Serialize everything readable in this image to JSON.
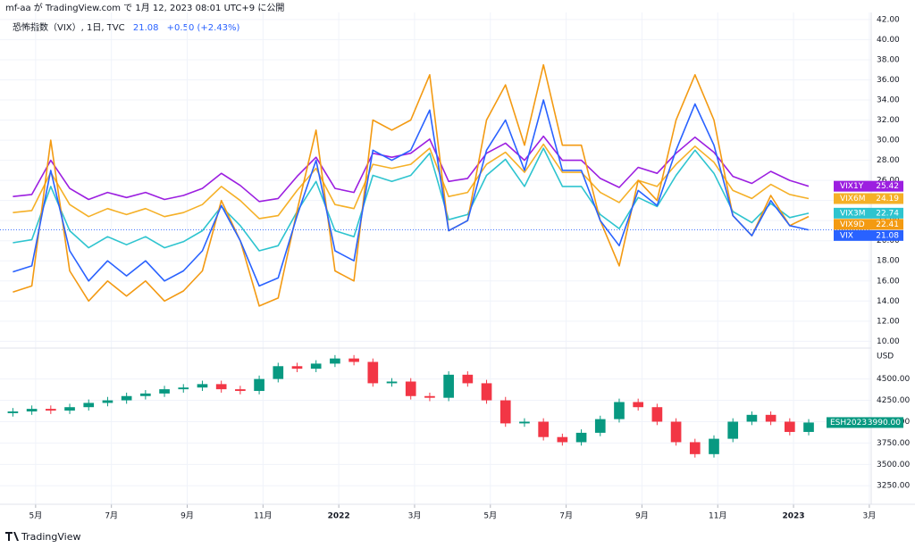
{
  "header": {
    "published": "mf-aa が TradingView.com で 1月 12, 2023 08:01 UTC+9 に公開",
    "brand": "TradingView"
  },
  "chart_data": [
    {
      "type": "line",
      "title": "恐怖指数（VIX）, 1日, TVC",
      "last": "21.08",
      "change_label": "+0.50 (+2.43%)",
      "x": [
        3.4,
        3.9,
        4.4,
        4.9,
        5.4,
        5.9,
        6.4,
        6.9,
        7.4,
        7.9,
        8.4,
        8.9,
        9.4,
        9.9,
        10.4,
        10.9,
        11.4,
        11.9,
        12.4,
        12.9,
        13.4,
        13.9,
        14.4,
        14.9,
        15.4,
        15.9,
        16.4,
        16.9,
        17.4,
        17.9,
        18.4,
        18.9,
        19.4,
        19.9,
        20.4,
        20.9,
        21.4,
        21.9,
        22.4,
        22.9,
        23.4,
        23.9,
        24.4
      ],
      "xlim": [
        3.06,
        26.05
      ],
      "xticks": [
        {
          "value": 4,
          "label": "5月"
        },
        {
          "value": 6,
          "label": "7月"
        },
        {
          "value": 8,
          "label": "9月"
        },
        {
          "value": 10,
          "label": "11月"
        },
        {
          "value": 12,
          "label": "2022"
        },
        {
          "value": 14,
          "label": "3月"
        },
        {
          "value": 16,
          "label": "5月"
        },
        {
          "value": 18,
          "label": "7月"
        },
        {
          "value": 20,
          "label": "9月"
        },
        {
          "value": 22,
          "label": "11月"
        },
        {
          "value": 24,
          "label": "2023"
        },
        {
          "value": 26,
          "label": "3月"
        }
      ],
      "ylim": [
        9.5,
        42.7
      ],
      "yticks": [
        {
          "value": 10,
          "label": "10.00"
        },
        {
          "value": 12,
          "label": "12.00"
        },
        {
          "value": 14,
          "label": "14.00"
        },
        {
          "value": 16,
          "label": "16.00"
        },
        {
          "value": 18,
          "label": "18.00"
        },
        {
          "value": 20,
          "label": "20.00"
        },
        {
          "value": 22,
          "label": "22.00"
        },
        {
          "value": 24,
          "label": "24.00"
        },
        {
          "value": 26,
          "label": "26.00"
        },
        {
          "value": 28,
          "label": "28.00"
        },
        {
          "value": 30,
          "label": "30.00"
        },
        {
          "value": 32,
          "label": "32.00"
        },
        {
          "value": 34,
          "label": "34.00"
        },
        {
          "value": 36,
          "label": "36.00"
        },
        {
          "value": 38,
          "label": "38.00"
        },
        {
          "value": 40,
          "label": "40.00"
        },
        {
          "value": 42,
          "label": "42.00"
        }
      ],
      "grid": true,
      "series": [
        {
          "name": "VIX1Y",
          "color": "#9c1fe0",
          "values": [
            24.4,
            24.6,
            28.0,
            25.2,
            24.1,
            24.8,
            24.3,
            24.8,
            24.1,
            24.5,
            25.2,
            26.7,
            25.5,
            23.9,
            24.2,
            26.4,
            28.3,
            25.2,
            24.8,
            28.7,
            28.3,
            28.7,
            30.1,
            25.9,
            26.2,
            28.7,
            29.7,
            28.0,
            30.4,
            28.0,
            28.0,
            26.2,
            25.3,
            27.3,
            26.7,
            28.7,
            30.3,
            28.8,
            26.4,
            25.7,
            26.9,
            26.0,
            25.42
          ]
        },
        {
          "name": "VIX6M",
          "color": "#f5b027",
          "values": [
            22.8,
            23.0,
            26.8,
            23.6,
            22.4,
            23.2,
            22.6,
            23.2,
            22.4,
            22.8,
            23.6,
            25.4,
            24.0,
            22.2,
            22.5,
            25.0,
            27.2,
            23.6,
            23.2,
            27.6,
            27.2,
            27.6,
            29.2,
            24.4,
            24.8,
            27.6,
            28.8,
            26.8,
            29.6,
            26.8,
            26.8,
            24.8,
            23.8,
            26.0,
            25.4,
            27.6,
            29.4,
            27.8,
            25.0,
            24.2,
            25.6,
            24.6,
            24.19
          ]
        },
        {
          "name": "VIX3M",
          "color": "#2ec4cf",
          "values": [
            19.8,
            20.1,
            25.4,
            21.0,
            19.3,
            20.4,
            19.6,
            20.4,
            19.3,
            19.9,
            21.0,
            23.4,
            21.5,
            19.0,
            19.5,
            22.9,
            25.9,
            21.0,
            20.4,
            26.5,
            25.9,
            26.5,
            28.7,
            22.1,
            22.6,
            26.5,
            28.1,
            25.4,
            29.2,
            25.4,
            25.4,
            22.6,
            21.2,
            24.3,
            23.4,
            26.5,
            29.0,
            26.7,
            22.9,
            21.8,
            23.7,
            22.3,
            22.74
          ]
        },
        {
          "name": "VIX9D",
          "color": "#f39a12",
          "values": [
            14.9,
            15.5,
            30,
            17,
            14,
            16,
            14.5,
            16,
            14,
            15,
            17,
            24,
            20,
            13.5,
            14.3,
            23,
            31,
            17,
            16,
            32,
            31,
            32,
            36.5,
            21,
            22,
            32,
            35.5,
            29.5,
            37.5,
            29.5,
            29.5,
            22,
            17.5,
            26,
            24,
            32,
            36.5,
            32,
            22.5,
            20.5,
            24.5,
            21.5,
            22.41
          ]
        },
        {
          "name": "VIX",
          "color": "#2962ff",
          "values": [
            16.9,
            17.5,
            27,
            19,
            16,
            18,
            16.5,
            18,
            16,
            17,
            19,
            23.5,
            20,
            15.5,
            16.3,
            22.5,
            28,
            19,
            18,
            29,
            28,
            29,
            33,
            21,
            22,
            29,
            32,
            27,
            34,
            27,
            27,
            22,
            19.5,
            25,
            23.5,
            29,
            33.6,
            29.5,
            22.5,
            20.5,
            24,
            21.5,
            21.08
          ]
        }
      ]
    },
    {
      "type": "candlestick",
      "name": "ESH2023",
      "currency": "USD",
      "close_label": "3990.00",
      "up_color": "#089981",
      "down_color": "#f23645",
      "x": [
        3.4,
        3.9,
        4.4,
        4.9,
        5.4,
        5.9,
        6.4,
        6.9,
        7.4,
        7.9,
        8.4,
        8.9,
        9.4,
        9.9,
        10.4,
        10.9,
        11.4,
        11.9,
        12.4,
        12.9,
        13.4,
        13.9,
        14.4,
        14.9,
        15.4,
        15.9,
        16.4,
        16.9,
        17.4,
        17.9,
        18.4,
        18.9,
        19.4,
        19.9,
        20.4,
        20.9,
        21.4,
        21.9,
        22.4,
        22.9,
        23.4,
        23.9,
        24.4
      ],
      "open": [
        4100,
        4120,
        4150,
        4130,
        4170,
        4220,
        4250,
        4300,
        4330,
        4380,
        4400,
        4440,
        4380,
        4360,
        4500,
        4650,
        4620,
        4680,
        4740,
        4700,
        4450,
        4470,
        4300,
        4280,
        4550,
        4450,
        4250,
        3980,
        4000,
        3820,
        3760,
        3870,
        4030,
        4230,
        4170,
        4000,
        3760,
        3620,
        3800,
        4000,
        4080,
        4000,
        3880
      ],
      "high": [
        4160,
        4190,
        4190,
        4210,
        4260,
        4290,
        4340,
        4370,
        4420,
        4440,
        4480,
        4480,
        4420,
        4540,
        4690,
        4690,
        4720,
        4780,
        4780,
        4740,
        4510,
        4510,
        4340,
        4590,
        4590,
        4490,
        4290,
        4040,
        4040,
        3860,
        3910,
        4070,
        4270,
        4270,
        4210,
        4040,
        3800,
        3840,
        4040,
        4120,
        4120,
        4040,
        4030
      ],
      "low": [
        4060,
        4080,
        4090,
        4090,
        4130,
        4180,
        4210,
        4260,
        4290,
        4340,
        4360,
        4340,
        4320,
        4320,
        4460,
        4580,
        4580,
        4640,
        4660,
        4410,
        4410,
        4260,
        4240,
        4240,
        4410,
        4210,
        3940,
        3940,
        3780,
        3720,
        3720,
        3830,
        3990,
        4130,
        3960,
        3720,
        3580,
        3580,
        3760,
        3960,
        3960,
        3840,
        3840
      ],
      "close": [
        4120,
        4150,
        4130,
        4170,
        4220,
        4250,
        4300,
        4330,
        4380,
        4400,
        4440,
        4380,
        4360,
        4500,
        4650,
        4620,
        4680,
        4740,
        4700,
        4450,
        4470,
        4300,
        4280,
        4550,
        4450,
        4250,
        3980,
        4000,
        3820,
        3760,
        3870,
        4030,
        4230,
        4170,
        4000,
        3760,
        3620,
        3800,
        4000,
        4080,
        4000,
        3880,
        3990
      ],
      "ylim": [
        3033,
        4841
      ],
      "yticks": [
        {
          "value": 3250,
          "label": "3250.00"
        },
        {
          "value": 3500,
          "label": "3500.00"
        },
        {
          "value": 3750,
          "label": "3750.00"
        },
        {
          "value": 4000,
          "label": "4000.00"
        },
        {
          "value": 4250,
          "label": "4250.00"
        },
        {
          "value": 4500,
          "label": "4500.00"
        }
      ]
    }
  ]
}
